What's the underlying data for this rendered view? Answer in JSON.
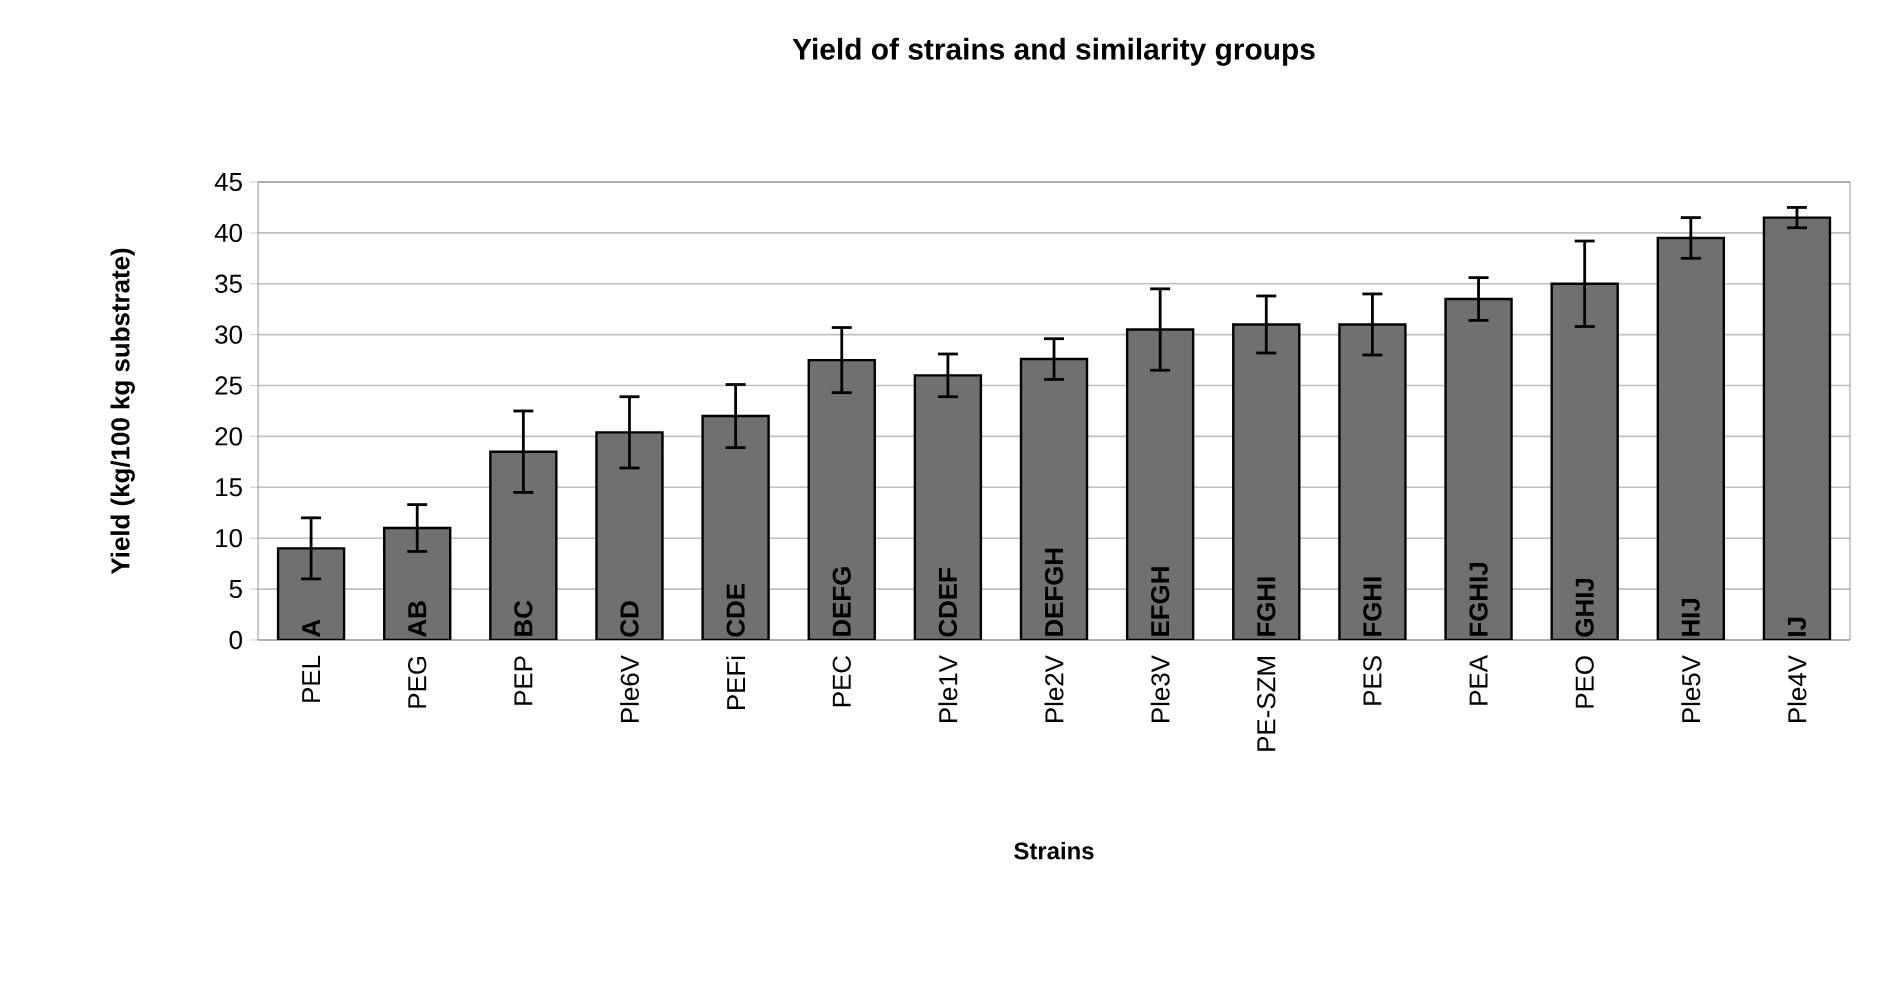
{
  "chart_data": {
    "type": "bar",
    "title": "Yield of strains and similarity groups",
    "xlabel": "Strains",
    "ylabel": "Yield (kg/100 kg substrate)",
    "categories": [
      "PEL",
      "PEG",
      "PEP",
      "Ple6V",
      "PEFi",
      "PEC",
      "Ple1V",
      "Ple2V",
      "Ple3V",
      "PE-SZM",
      "PES",
      "PEA",
      "PEO",
      "Ple5V",
      "Ple4V"
    ],
    "values": [
      9,
      11,
      18.5,
      20.4,
      22,
      27.5,
      26,
      27.6,
      30.5,
      31,
      31,
      33.5,
      35,
      39.5,
      41.5
    ],
    "errors": [
      3,
      2.3,
      4,
      3.5,
      3.1,
      3.2,
      2.1,
      2,
      4,
      2.8,
      3,
      2.1,
      4.2,
      2,
      1
    ],
    "color": "#707070",
    "ylim": [
      0,
      45
    ],
    "yticks": [
      0,
      5,
      10,
      15,
      20,
      25,
      30,
      35,
      40,
      45
    ],
    "grid": "y",
    "annotations": [
      {
        "text": "A",
        "x": "PEL",
        "y": 0
      },
      {
        "text": "AB",
        "x": "PEG",
        "y": 0
      },
      {
        "text": "BC",
        "x": "PEP",
        "y": 0
      },
      {
        "text": "CD",
        "x": "Ple6V",
        "y": 0
      },
      {
        "text": "CDE",
        "x": "PEFi",
        "y": 0
      },
      {
        "text": "DEFG",
        "x": "PEC",
        "y": 0
      },
      {
        "text": "CDEF",
        "x": "Ple1V",
        "y": 0
      },
      {
        "text": "DEFGH",
        "x": "Ple2V",
        "y": 0
      },
      {
        "text": "EFGH",
        "x": "Ple3V",
        "y": 0
      },
      {
        "text": "FGHI",
        "x": "PE-SZM",
        "y": 0
      },
      {
        "text": "FGHI",
        "x": "PES",
        "y": 0
      },
      {
        "text": "FGHIJ",
        "x": "PEA",
        "y": 0
      },
      {
        "text": "GHIJ",
        "x": "PEO",
        "y": 0
      },
      {
        "text": "HIJ",
        "x": "Ple5V",
        "y": 0
      },
      {
        "text": "IJ",
        "x": "Ple4V",
        "y": 0
      }
    ]
  }
}
